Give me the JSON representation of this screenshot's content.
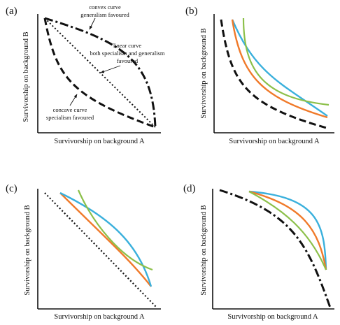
{
  "figure": {
    "panels": [
      {
        "label": "(a)",
        "xlabel": "Survivorship on background A",
        "ylabel": "Survivorship on background B",
        "annotations": [
          {
            "line1": "convex curve",
            "line2": "generalism favoured"
          },
          {
            "line1": "linear curve",
            "line2": "both specialism and generalism",
            "line3": "favoured"
          },
          {
            "line1": "concave curve",
            "line2": "specialism favoured"
          }
        ]
      },
      {
        "label": "(b)",
        "xlabel": "Survivorship on background A",
        "ylabel": "Survivorship on background B"
      },
      {
        "label": "(c)",
        "xlabel": "Survivorship on background A",
        "ylabel": "Survivorship on background B"
      },
      {
        "label": "(d)",
        "xlabel": "Survivorship on background A",
        "ylabel": "Survivorship on background B"
      }
    ],
    "colors": {
      "blue": "#3ab0dc",
      "orange": "#f07a2a",
      "green": "#8cc04a",
      "black": "#111111"
    }
  }
}
